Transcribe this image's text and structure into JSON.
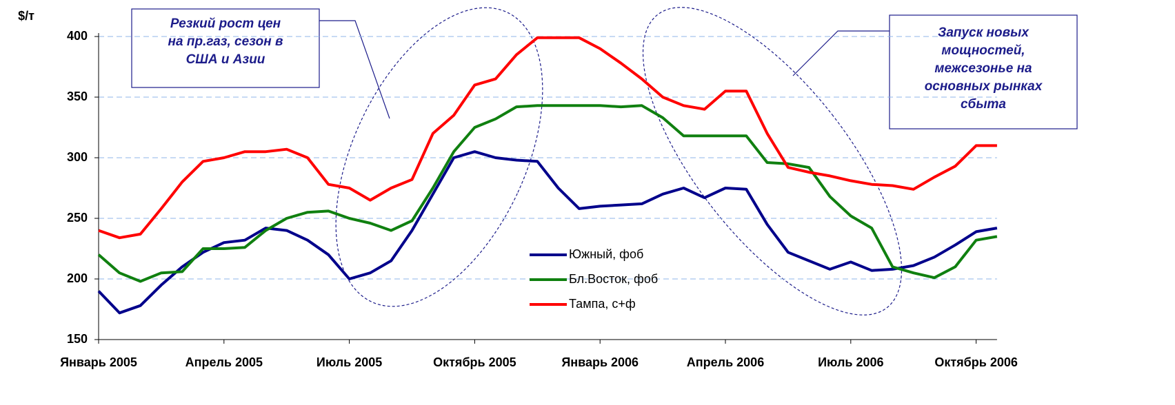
{
  "chart_data": {
    "type": "line",
    "ylabel": "$/т",
    "categories": [
      "Январь 2005",
      null,
      null,
      null,
      null,
      null,
      "Апрель 2005",
      null,
      null,
      null,
      null,
      null,
      "Июль 2005",
      null,
      null,
      null,
      null,
      null,
      "Октябрь 2005",
      null,
      null,
      null,
      null,
      null,
      "Январь 2006",
      null,
      null,
      null,
      null,
      null,
      "Апрель 2006",
      null,
      null,
      null,
      null,
      null,
      "Июль 2006",
      null,
      null,
      null,
      null,
      null,
      "Октябрь 2006",
      null
    ],
    "series": [
      {
        "name": "Южный, фоб",
        "color": "#00008b",
        "values": [
          190,
          172,
          178,
          195,
          210,
          222,
          230,
          232,
          242,
          240,
          232,
          220,
          200,
          205,
          215,
          240,
          270,
          300,
          305,
          300,
          298,
          297,
          275,
          258,
          260,
          261,
          262,
          270,
          275,
          267,
          275,
          274,
          245,
          222,
          215,
          208,
          214,
          207,
          208,
          211,
          218,
          228,
          239,
          242
        ]
      },
      {
        "name": "Бл.Восток, фоб",
        "color": "#108010",
        "values": [
          220,
          205,
          198,
          205,
          206,
          225,
          225,
          226,
          240,
          250,
          255,
          256,
          250,
          246,
          240,
          248,
          275,
          305,
          325,
          332,
          342,
          343,
          343,
          343,
          343,
          342,
          343,
          333,
          318,
          318,
          318,
          318,
          296,
          295,
          292,
          268,
          252,
          242,
          210,
          205,
          201,
          210,
          232,
          235
        ]
      },
      {
        "name": "Тампа, с+ф",
        "color": "#ff0000",
        "values": [
          240,
          234,
          237,
          258,
          280,
          297,
          300,
          305,
          305,
          307,
          300,
          278,
          275,
          265,
          275,
          282,
          320,
          335,
          360,
          365,
          385,
          399,
          399,
          399,
          390,
          378,
          365,
          350,
          343,
          340,
          355,
          355,
          320,
          292,
          288,
          285,
          281,
          278,
          277,
          274,
          284,
          293,
          310,
          310
        ]
      }
    ],
    "ylim": [
      150,
      400
    ],
    "yticks": [
      150,
      200,
      250,
      300,
      350,
      400
    ],
    "grid": true,
    "annotations": [
      {
        "lines": [
          "Резкий рост цен",
          "на пр.газ, сезон в",
          "США и Азии"
        ]
      },
      {
        "lines": [
          "Запуск новых",
          "мощностей,",
          "межсезонье на",
          "основных рынках",
          "сбыта"
        ]
      }
    ]
  }
}
